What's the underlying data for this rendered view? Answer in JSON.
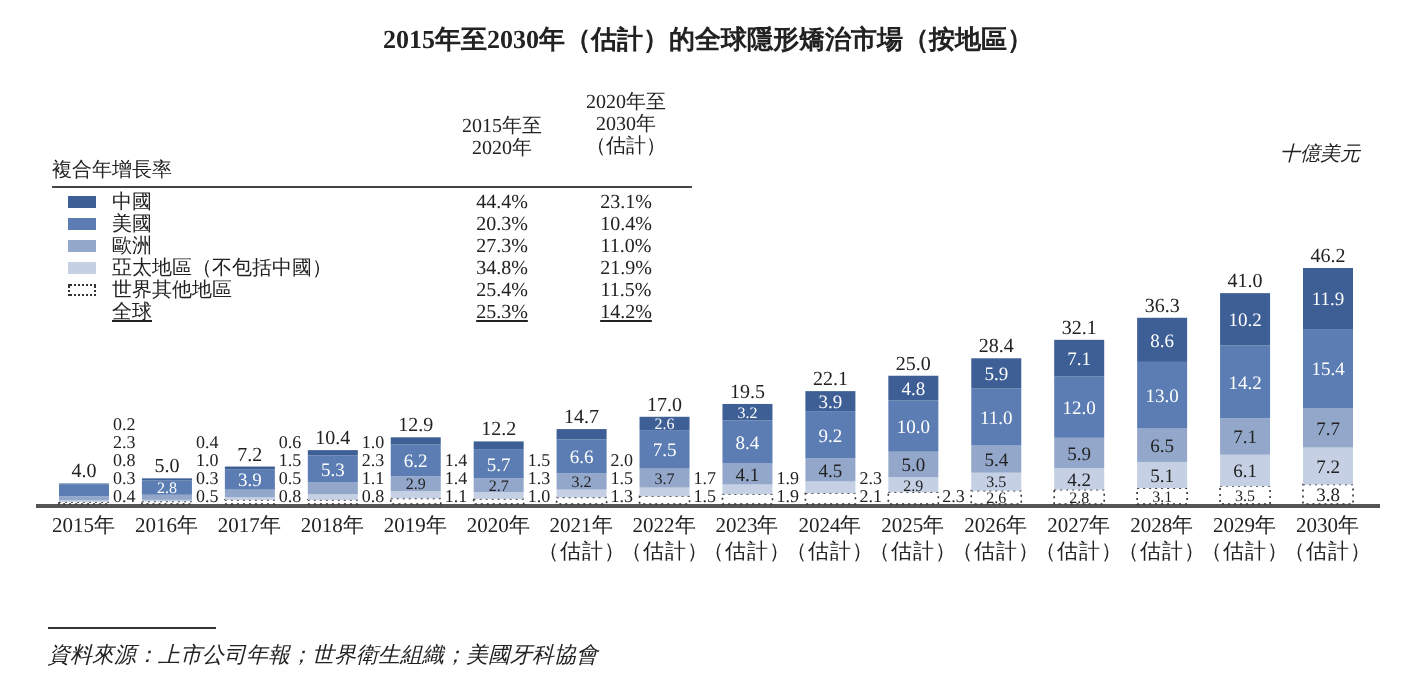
{
  "chart_data": {
    "type": "bar",
    "stacked": true,
    "legend": "top left",
    "title": "2015年至2030年（估計）的全球隱形矯治市場（按地區）",
    "categories": [
      "2015年",
      "2016年",
      "2017年",
      "2018年",
      "2019年",
      "2020年",
      "2021年（估計）",
      "2022年（估計）",
      "2023年（估計）",
      "2024年（估計）",
      "2025年（估計）",
      "2026年（估計）",
      "2027年（估計）",
      "2028年（估計）",
      "2029年（估計）",
      "2030年（估計）"
    ],
    "series": [
      {
        "name": "世界其他地區",
        "color": "#ffffff",
        "values": [
          0.4,
          0.5,
          0.8,
          0.8,
          1.1,
          1.0,
          1.3,
          1.5,
          1.9,
          2.1,
          2.3,
          2.6,
          2.8,
          3.1,
          3.5,
          3.8
        ],
        "value_labels": [
          "0.4",
          "0.5",
          "0.8",
          "0.8",
          "1.1",
          "1.0",
          "1.3",
          "1.5",
          "1.9",
          "2.1",
          "2.3",
          "2.6",
          "2.8",
          "3.1",
          "3.5",
          "3.8"
        ]
      },
      {
        "name": "亞太地區（不包括中國）",
        "color": "#c5d0e4",
        "values": [
          0.3,
          0.3,
          0.5,
          1.1,
          1.4,
          1.3,
          1.5,
          1.7,
          1.9,
          2.3,
          2.9,
          3.5,
          4.2,
          5.1,
          6.1,
          7.2
        ],
        "value_labels": [
          "0.3",
          "0.3",
          "0.5",
          "1.1",
          "1.4",
          "1.3",
          "1.5",
          "1.7",
          "1.9",
          "2.3",
          "2.9",
          "3.5",
          "4.2",
          "5.1",
          "6.1",
          "7.2"
        ]
      },
      {
        "name": "歐洲",
        "color": "#93a7cb",
        "values": [
          0.8,
          1.0,
          1.5,
          2.3,
          2.9,
          2.7,
          3.2,
          3.7,
          4.1,
          4.5,
          5.0,
          5.4,
          5.9,
          6.5,
          7.1,
          7.7
        ],
        "value_labels": [
          "0.8",
          "1.0",
          "1.5",
          "2.3",
          "2.9",
          "2.7",
          "3.2",
          "3.7",
          "4.1",
          "4.5",
          "5.0",
          "5.4",
          "5.9",
          "6.5",
          "7.1",
          "7.7"
        ]
      },
      {
        "name": "美國",
        "color": "#5b7db3",
        "values": [
          2.3,
          2.8,
          3.9,
          5.3,
          6.2,
          5.7,
          6.6,
          7.5,
          8.4,
          9.2,
          10.0,
          11.0,
          12.0,
          13.0,
          14.2,
          15.4
        ],
        "value_labels": [
          "2.3",
          "2.8",
          "3.9",
          "5.3",
          "6.2",
          "5.7",
          "6.6",
          "7.5",
          "8.4",
          "9.2",
          "10.0",
          "11.0",
          "12.0",
          "13.0",
          "14.2",
          "15.4"
        ]
      },
      {
        "name": "中國",
        "color": "#3d5f96",
        "values": [
          0.2,
          0.4,
          0.6,
          1.0,
          1.4,
          1.5,
          2.0,
          2.6,
          3.2,
          3.9,
          4.8,
          5.9,
          7.1,
          8.6,
          10.2,
          11.9
        ],
        "value_labels": [
          "0.2",
          "0.4",
          "0.6",
          "1.0",
          "1.4",
          "1.5",
          "2.0",
          "2.6",
          "3.2",
          "3.9",
          "4.8",
          "5.9",
          "7.1",
          "8.6",
          "10.2",
          "11.9"
        ]
      }
    ],
    "totals": [
      "4.0",
      "5.0",
      "7.2",
      "10.4",
      "12.9",
      "12.2",
      "14.7",
      "17.0",
      "19.5",
      "22.1",
      "25.0",
      "28.4",
      "32.1",
      "36.3",
      "41.0",
      "46.2"
    ],
    "annotations": [
      "複合年增長率",
      "2015年至2020年",
      "2020年至2030年（估計）",
      "44.4%",
      "23.1%",
      "20.3%",
      "10.4%",
      "27.3%",
      "11.0%",
      "34.8%",
      "21.9%",
      "25.4%",
      "11.5%",
      "全球",
      "25.3%",
      "14.2%",
      "十億美元",
      "資料來源：上市公司年報；世界衛生組織；美國牙科協會"
    ]
  }
}
